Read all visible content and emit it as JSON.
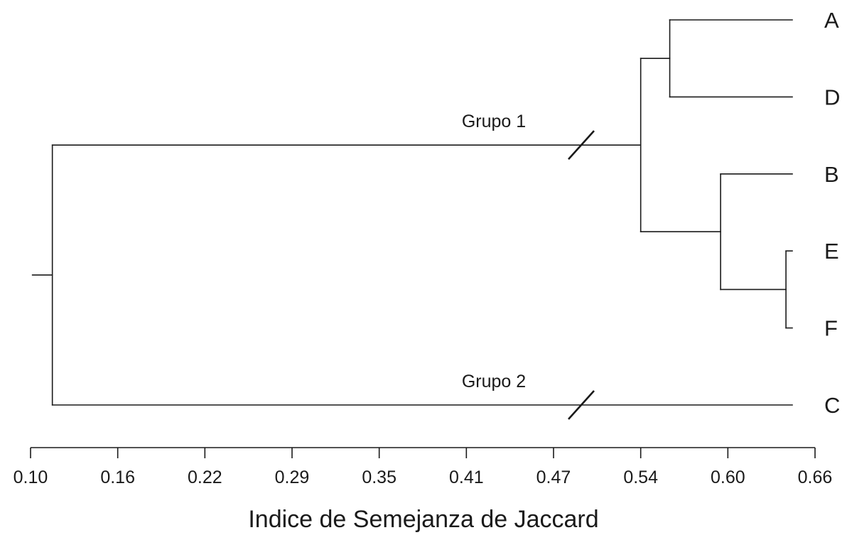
{
  "chart_data": {
    "type": "dendrogram",
    "title": "",
    "xlabel": "Indice de Semejanza de Jaccard",
    "ylabel": "",
    "x_ticks": [
      "0.10",
      "0.16",
      "0.22",
      "0.29",
      "0.35",
      "0.41",
      "0.47",
      "0.54",
      "0.60",
      "0.66"
    ],
    "xlim": [
      0.1,
      0.66
    ],
    "axis_position": "bottom",
    "leaves": [
      "A",
      "D",
      "B",
      "E",
      "F",
      "C"
    ],
    "merges": [
      {
        "id": "AD",
        "children": [
          "A",
          "D"
        ],
        "similarity": 0.56
      },
      {
        "id": "EF",
        "children": [
          "E",
          "F"
        ],
        "similarity": 0.64
      },
      {
        "id": "BEF",
        "children": [
          "B",
          "EF"
        ],
        "similarity": 0.595
      },
      {
        "id": "G1",
        "children": [
          "AD",
          "BEF"
        ],
        "similarity": 0.54
      },
      {
        "id": "root",
        "children": [
          "G1",
          "C"
        ],
        "similarity": 0.115
      }
    ],
    "group_labels": [
      {
        "text": "Grupo 1",
        "node": "G1"
      },
      {
        "text": "Grupo 2",
        "node": "C"
      }
    ],
    "axis_breaks": [
      "G1",
      "C"
    ]
  }
}
